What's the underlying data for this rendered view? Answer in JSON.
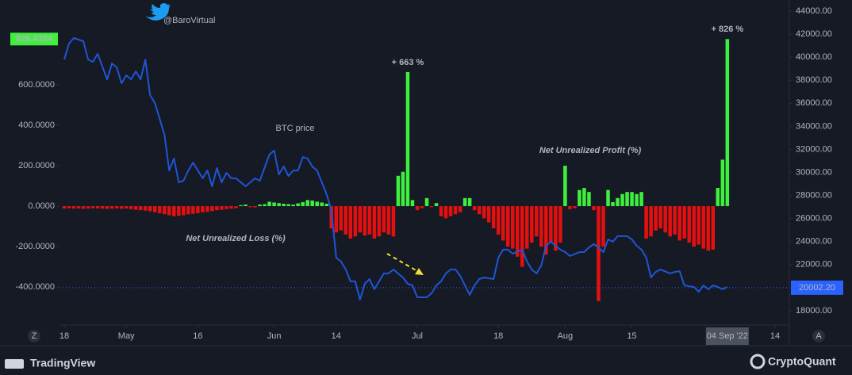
{
  "chart_data": {
    "type": "combo",
    "title": "@BaroVirtual",
    "title_color": "#1d9bf0",
    "xlim": [
      -1,
      152
    ],
    "xticks": [
      {
        "value": 0,
        "label": "18"
      },
      {
        "value": 13,
        "label": "May"
      },
      {
        "value": 28,
        "label": "16"
      },
      {
        "value": 44,
        "label": "Jun"
      },
      {
        "value": 57,
        "label": "14"
      },
      {
        "value": 74,
        "label": "Jul"
      },
      {
        "value": 91,
        "label": "18"
      },
      {
        "value": 105,
        "label": "Aug"
      },
      {
        "value": 119,
        "label": "15"
      },
      {
        "value": 149,
        "label": "14"
      }
    ],
    "ylim": [
      -588,
      1000
    ],
    "yticks": [
      {
        "value": 600,
        "label": "600.0000"
      },
      {
        "value": 400,
        "label": "400.0000"
      },
      {
        "value": 200,
        "label": "200.0000"
      },
      {
        "value": 0,
        "label": "0.0000"
      },
      {
        "value": -200,
        "label": "-200.0000"
      },
      {
        "value": -400,
        "label": "-400.0000"
      }
    ],
    "y2lim": [
      16760,
      44620
    ],
    "y2ticks": [
      {
        "value": 44000,
        "label": "44000.00"
      },
      {
        "value": 42000,
        "label": "42000.00"
      },
      {
        "value": 40000,
        "label": "40000.00"
      },
      {
        "value": 38000,
        "label": "38000.00"
      },
      {
        "value": 36000,
        "label": "36000.00"
      },
      {
        "value": 34000,
        "label": "34000.00"
      },
      {
        "value": 32000,
        "label": "32000.00"
      },
      {
        "value": 30000,
        "label": "30000.00"
      },
      {
        "value": 28000,
        "label": "28000.00"
      },
      {
        "value": 26000,
        "label": "26000.00"
      },
      {
        "value": 24000,
        "label": "24000.00"
      },
      {
        "value": 22000,
        "label": "22000.00"
      },
      {
        "value": 20000,
        "label": "20000.00"
      },
      {
        "value": 18000,
        "label": "18000.00"
      }
    ],
    "series": [
      {
        "type": "bar",
        "positive_color": "#3ef03e",
        "negative_color": "#e41010",
        "x": [
          0,
          1,
          2,
          3,
          4,
          5,
          6,
          7,
          8,
          9,
          10,
          11,
          12,
          13,
          14,
          15,
          16,
          17,
          18,
          19,
          20,
          21,
          22,
          23,
          24,
          25,
          26,
          27,
          28,
          29,
          30,
          31,
          32,
          33,
          34,
          35,
          36,
          37,
          38,
          39,
          40,
          41,
          42,
          43,
          44,
          45,
          46,
          47,
          48,
          49,
          50,
          51,
          52,
          53,
          54,
          55,
          56,
          57,
          58,
          59,
          60,
          61,
          62,
          63,
          64,
          65,
          66,
          67,
          68,
          69,
          70,
          71,
          72,
          73,
          74,
          75,
          76,
          77,
          78,
          79,
          80,
          81,
          82,
          83,
          84,
          85,
          86,
          87,
          88,
          89,
          90,
          91,
          92,
          93,
          94,
          95,
          96,
          97,
          98,
          99,
          100,
          101,
          102,
          103,
          104,
          105,
          106,
          107,
          108,
          109,
          110,
          111,
          112,
          113,
          114,
          115,
          116,
          117,
          118,
          119,
          120,
          121,
          122,
          123,
          124,
          125,
          126,
          127,
          128,
          129,
          130,
          131,
          132,
          133,
          134,
          135,
          136,
          137,
          138,
          139
        ],
        "values": [
          -12,
          -10,
          -12,
          -11,
          -13,
          -12,
          -10,
          -11,
          -12,
          -13,
          -12,
          -11,
          -13,
          -12,
          -15,
          -18,
          -20,
          -22,
          -25,
          -30,
          -35,
          -40,
          -45,
          -50,
          -48,
          -45,
          -40,
          -38,
          -35,
          -30,
          -28,
          -25,
          -20,
          -18,
          -15,
          -12,
          -10,
          5,
          8,
          -5,
          -6,
          8,
          10,
          22,
          18,
          15,
          12,
          10,
          8,
          14,
          20,
          30,
          28,
          22,
          18,
          12,
          -110,
          -130,
          -120,
          -140,
          -160,
          -150,
          -130,
          -145,
          -140,
          -160,
          -150,
          -130,
          -140,
          -150,
          150,
          170,
          663,
          30,
          -20,
          -10,
          40,
          -5,
          15,
          -50,
          -60,
          -50,
          -40,
          -30,
          40,
          40,
          -20,
          -40,
          -60,
          -80,
          -110,
          -140,
          -170,
          -200,
          -210,
          -250,
          -300,
          -210,
          -180,
          -150,
          -200,
          -240,
          -180,
          -220,
          -180,
          200,
          -15,
          -10,
          80,
          90,
          70,
          -20,
          -470,
          -200,
          80,
          20,
          40,
          60,
          70,
          70,
          60,
          70,
          -160,
          -150,
          -120,
          -110,
          -130,
          -150,
          -140,
          -170,
          -160,
          -180,
          -200,
          -190,
          -210,
          -220,
          -215,
          90,
          230,
          826.4324
        ],
        "labels": [
          {
            "index": 72,
            "label": "+ 663 %"
          },
          {
            "index": 139,
            "label": "+ 826 %"
          }
        ]
      },
      {
        "type": "line",
        "axis": "y2",
        "name": "BTC price",
        "color": "#1f55d6",
        "x": [
          0,
          1,
          2,
          4,
          5,
          6,
          7,
          9,
          10,
          11,
          12,
          13,
          14,
          15,
          16,
          17,
          18,
          19,
          20,
          21,
          22,
          23,
          24,
          25,
          26,
          27,
          29,
          30,
          31,
          32,
          33,
          34,
          35,
          36,
          38,
          39,
          40,
          41,
          43,
          44,
          45,
          46,
          47,
          48,
          49,
          50,
          51,
          52,
          53,
          54,
          55,
          56,
          57,
          58,
          59,
          60,
          61,
          62,
          63,
          64,
          65,
          66,
          67,
          68,
          69,
          71,
          72,
          73,
          74,
          76,
          77,
          78,
          79,
          80,
          81,
          82,
          83,
          84,
          85,
          86,
          87,
          88,
          90,
          91,
          92,
          93,
          94,
          96,
          97,
          98,
          99,
          100,
          101,
          102,
          103,
          104,
          105,
          106,
          108,
          109,
          110,
          111,
          112,
          113,
          114,
          115,
          116,
          118,
          119,
          120,
          121,
          122,
          123,
          124,
          125,
          127,
          128,
          129,
          130,
          132,
          133,
          134,
          135,
          136,
          137,
          138,
          139
        ],
        "values": [
          39800,
          41180,
          41660,
          41390,
          39800,
          39600,
          40290,
          38080,
          39460,
          39120,
          37740,
          38430,
          38080,
          38770,
          38080,
          39800,
          36710,
          36020,
          34650,
          33270,
          30170,
          31210,
          29140,
          29280,
          30170,
          30860,
          29490,
          30170,
          28800,
          30380,
          29140,
          29970,
          29490,
          29490,
          28800,
          29140,
          29490,
          29280,
          31550,
          31900,
          29830,
          30520,
          29690,
          30170,
          30170,
          31340,
          31210,
          30520,
          30170,
          29140,
          28110,
          26740,
          22610,
          22270,
          21580,
          20550,
          20550,
          18960,
          20340,
          20750,
          19860,
          20550,
          21240,
          21240,
          21580,
          20890,
          20340,
          20200,
          19170,
          19170,
          19510,
          20200,
          20550,
          21240,
          21580,
          21580,
          21030,
          20200,
          19380,
          20200,
          20750,
          20890,
          20750,
          22610,
          23300,
          23300,
          22950,
          23300,
          22270,
          21580,
          21240,
          21920,
          23640,
          23990,
          23640,
          23300,
          23090,
          22750,
          23090,
          23090,
          23500,
          23780,
          23500,
          23090,
          24190,
          23990,
          24470,
          24470,
          24190,
          23640,
          23300,
          22610,
          20890,
          21370,
          21580,
          21240,
          21370,
          21440,
          20200,
          20060,
          19650,
          20200,
          19860,
          20200,
          20060,
          19860,
          20060
        ]
      }
    ],
    "annotations": [
      {
        "text": "BTC price",
        "color": "#2f5fd0"
      },
      {
        "text": "Net Unrealized Profit (%)",
        "color": "#3ef03e"
      },
      {
        "text": "Net Unrealized Loss (%)",
        "color": "#e41010"
      }
    ],
    "last_value_tag": {
      "value": 826.4324,
      "label": "826.4324",
      "color": "#3ef03e"
    },
    "crosshair": {
      "x": {
        "value": 139,
        "label": "04 Sep '22"
      },
      "y2": {
        "value": 20002.2,
        "label": "20002.20"
      },
      "color": "#2962ff"
    },
    "footer": {
      "left": "TradingView",
      "right": "CryptoQuant",
      "buttons": [
        "Z",
        "A"
      ]
    }
  }
}
